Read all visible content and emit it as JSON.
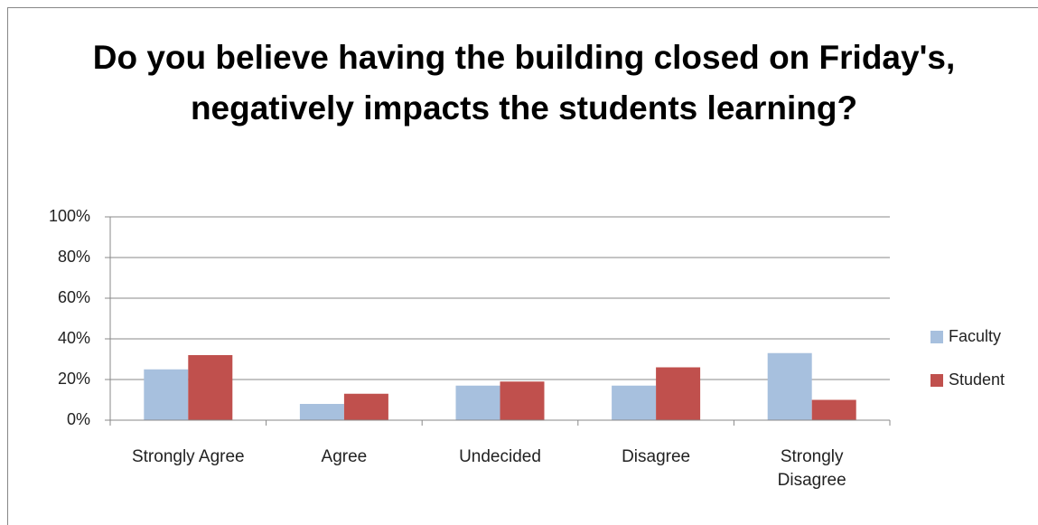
{
  "chart_data": {
    "type": "bar",
    "title": "Do you believe having the building closed on Friday's, negatively impacts the students learning?",
    "categories": [
      "Strongly Agree",
      "Agree",
      "Undecided",
      "Disagree",
      "Strongly Disagree"
    ],
    "series": [
      {
        "name": "Faculty",
        "color": "#a7c0de",
        "values": [
          25,
          8,
          17,
          17,
          33
        ]
      },
      {
        "name": "Student",
        "color": "#c0504d",
        "values": [
          32,
          13,
          19,
          26,
          10
        ]
      }
    ],
    "ylim": [
      0,
      100
    ],
    "yticks": [
      {
        "value": 0,
        "label": "0%"
      },
      {
        "value": 20,
        "label": "20%"
      },
      {
        "value": 40,
        "label": "40%"
      },
      {
        "value": 60,
        "label": "60%"
      },
      {
        "value": 80,
        "label": "80%"
      },
      {
        "value": 100,
        "label": "100%"
      }
    ],
    "grid": true,
    "legend": "right"
  }
}
